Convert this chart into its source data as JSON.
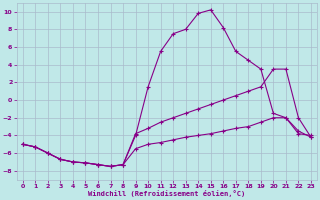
{
  "background_color": "#c0e8e8",
  "grid_color": "#aabbcc",
  "line_color": "#880088",
  "marker_color": "#880088",
  "xlabel": "Windchill (Refroidissement éolien,°C)",
  "xlim": [
    -0.5,
    23.5
  ],
  "ylim": [
    -9,
    11
  ],
  "xticks": [
    0,
    1,
    2,
    3,
    4,
    5,
    6,
    7,
    8,
    9,
    10,
    11,
    12,
    13,
    14,
    15,
    16,
    17,
    18,
    19,
    20,
    21,
    22,
    23
  ],
  "yticks": [
    -8,
    -6,
    -4,
    -2,
    0,
    2,
    4,
    6,
    8,
    10
  ],
  "figsize": [
    3.2,
    2.0
  ],
  "dpi": 100,
  "curves": [
    {
      "x": [
        0,
        1,
        2,
        3,
        4,
        5,
        6,
        7,
        8,
        9,
        10,
        11,
        12,
        13,
        14,
        15,
        16,
        17,
        18,
        19,
        20,
        21,
        22,
        23
      ],
      "y": [
        -5,
        -5.3,
        -6,
        -6.7,
        -7,
        -7.1,
        -7.3,
        -7.5,
        -7.3,
        -4,
        1.5,
        5.5,
        7.5,
        8,
        9.8,
        10.2,
        8.2,
        5.5,
        4.5,
        3.5,
        -1.5,
        -2,
        -3.8,
        -4
      ]
    },
    {
      "x": [
        0,
        1,
        2,
        3,
        4,
        5,
        6,
        7,
        8,
        9,
        10,
        11,
        12,
        13,
        14,
        15,
        16,
        17,
        18,
        19,
        20,
        21,
        22,
        23
      ],
      "y": [
        -5,
        -5.3,
        -6,
        -6.7,
        -7,
        -7.1,
        -7.3,
        -7.5,
        -7.3,
        -3.8,
        -3.2,
        -2.5,
        -2,
        -1.5,
        -1,
        -0.5,
        0,
        0.5,
        1,
        1.5,
        3.5,
        3.5,
        -2,
        -4.2
      ]
    },
    {
      "x": [
        0,
        1,
        2,
        3,
        4,
        5,
        6,
        7,
        8,
        9,
        10,
        11,
        12,
        13,
        14,
        15,
        16,
        17,
        18,
        19,
        20,
        21,
        22,
        23
      ],
      "y": [
        -5,
        -5.3,
        -6,
        -6.7,
        -7,
        -7.1,
        -7.3,
        -7.5,
        -7.3,
        -5.5,
        -5,
        -4.8,
        -4.5,
        -4.2,
        -4,
        -3.8,
        -3.5,
        -3.2,
        -3,
        -2.5,
        -2,
        -2,
        -3.5,
        -4.2
      ]
    }
  ]
}
